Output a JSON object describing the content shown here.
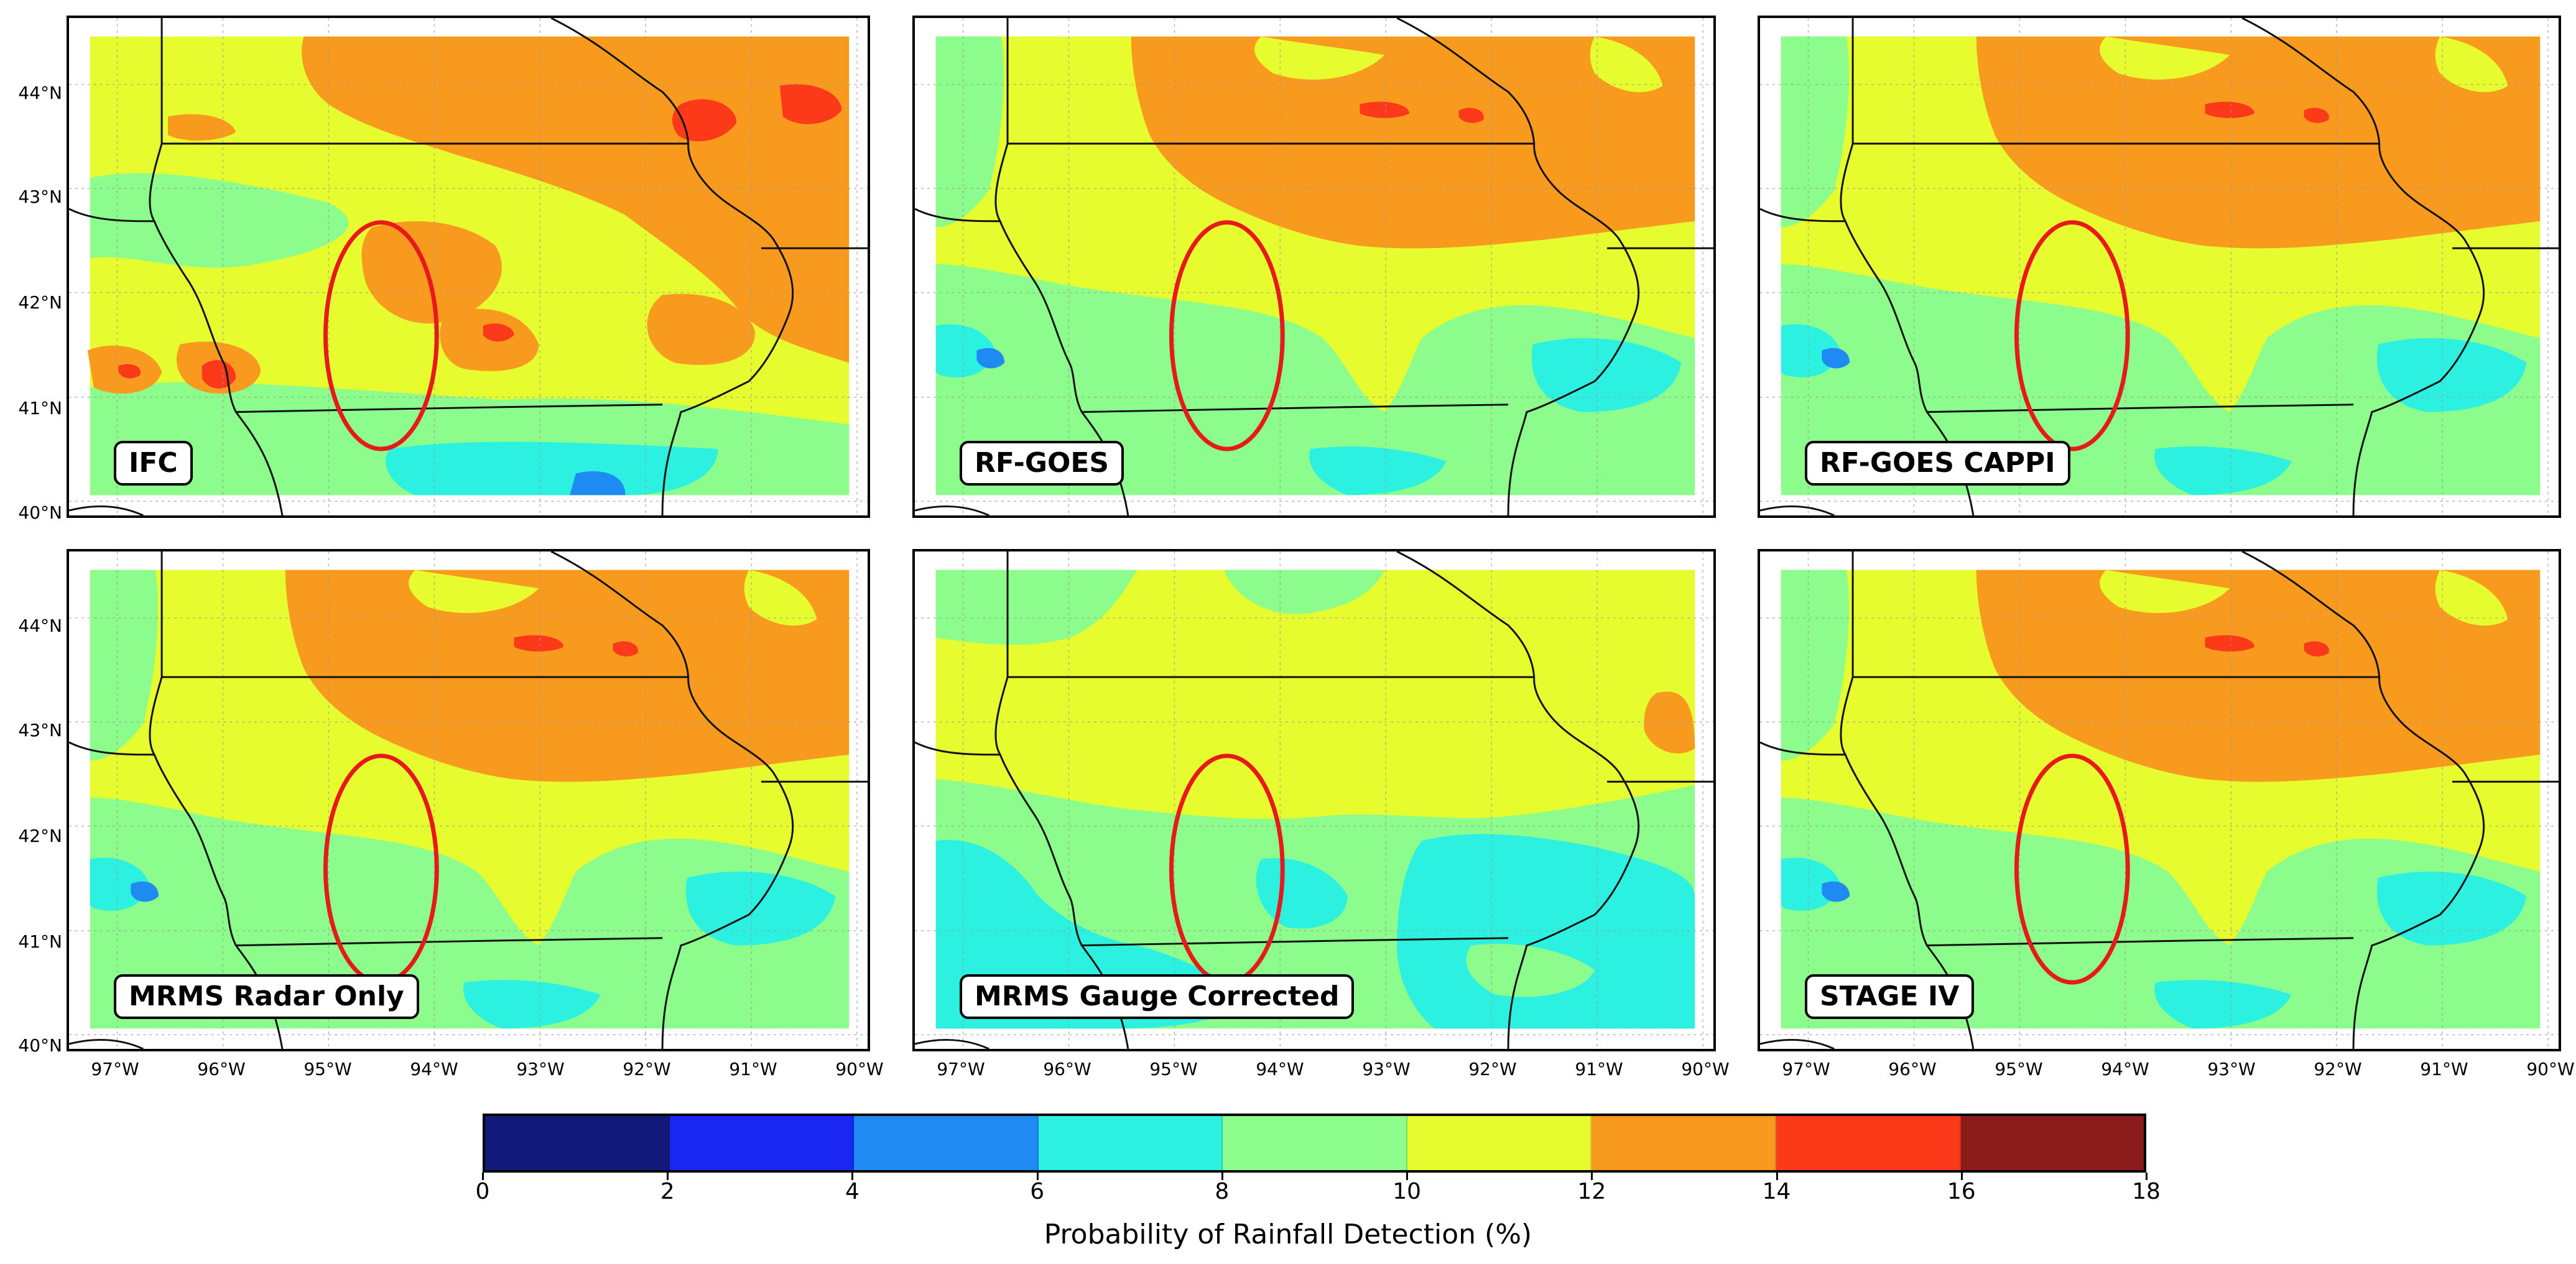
{
  "panels": [
    {
      "id": "ifc",
      "label": "IFC",
      "palette": "warm"
    },
    {
      "id": "rf-goes",
      "label": "RF-GOES",
      "palette": "mixed"
    },
    {
      "id": "rf-goes-cappi",
      "label": "RF-GOES CAPPI",
      "palette": "mixed"
    },
    {
      "id": "mrms-radar-only",
      "label": "MRMS Radar Only",
      "palette": "mixed"
    },
    {
      "id": "mrms-gauge-corrected",
      "label": "MRMS Gauge Corrected",
      "palette": "cool"
    },
    {
      "id": "stage-iv",
      "label": "STAGE IV",
      "palette": "mixed"
    }
  ],
  "latitude_labels": [
    "44°N",
    "43°N",
    "42°N",
    "41°N",
    "40°N"
  ],
  "longitude_labels": [
    "97°W",
    "96°W",
    "95°W",
    "94°W",
    "93°W",
    "92°W",
    "91°W",
    "90°W"
  ],
  "colorbar": {
    "label": "Probability of Rainfall Detection (%)",
    "ticks": [
      "0",
      "2",
      "4",
      "6",
      "8",
      "10",
      "12",
      "14",
      "16",
      "18"
    ],
    "colors": [
      "#141a7a",
      "#1a26f2",
      "#1f8af2",
      "#2cf0e0",
      "#8cfc8c",
      "#e6fc2e",
      "#f79a1e",
      "#fc3a1a",
      "#8b1a1a"
    ]
  },
  "highlight": {
    "shape": "ellipse",
    "color": "#e8191a"
  }
}
